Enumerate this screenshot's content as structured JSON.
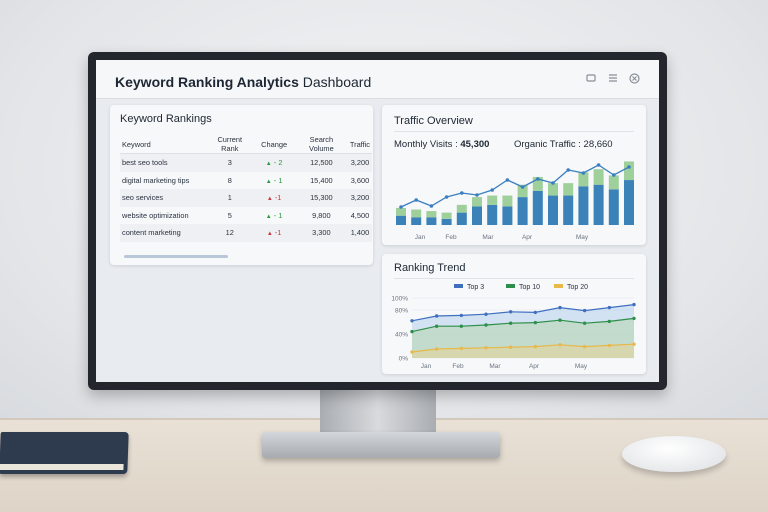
{
  "window": {
    "title_bold": "Keyword Ranking Analytics",
    "title_rest": "Dashboard"
  },
  "icons": {
    "window_controls": [
      "message-icon",
      "list-icon",
      "close-icon"
    ]
  },
  "keyword_rankings": {
    "title": "Keyword Rankings",
    "columns": [
      "Keyword",
      "Current Rank",
      "Change",
      "Search Volume",
      "Traffic"
    ],
    "rows": [
      {
        "keyword": "best seo tools",
        "rank": "3",
        "change": "2",
        "dir": "up",
        "volume": "12,500",
        "traffic": "3,200"
      },
      {
        "keyword": "digital marketing tips",
        "rank": "8",
        "change": "1",
        "dir": "up",
        "volume": "15,400",
        "traffic": "3,600"
      },
      {
        "keyword": "seo services",
        "rank": "1",
        "change": "1",
        "dir": "down",
        "volume": "15,300",
        "traffic": "3,200"
      },
      {
        "keyword": "website optimization",
        "rank": "5",
        "change": "1",
        "dir": "up",
        "volume": "9,800",
        "traffic": "4,500"
      },
      {
        "keyword": "content marketing",
        "rank": "12",
        "change": "1",
        "dir": "down",
        "volume": "3,300",
        "traffic": "1,400"
      }
    ]
  },
  "traffic_overview": {
    "title": "Traffic Overview",
    "monthly_label": "Monthly Visits :",
    "monthly_value": "45,300",
    "organic_label": "Organic Traffic :",
    "organic_value": "28,660"
  },
  "ranking_trend": {
    "title": "Ranking Trend"
  },
  "colors": {
    "blue": "#3b82b8",
    "green": "#9fcf9a",
    "top3": "#3f6fc0",
    "top10": "#2e8f4a",
    "top20": "#e8b84a"
  },
  "chart_data": [
    {
      "type": "bar",
      "title": "Traffic Overview",
      "x_tick_labels": [
        "Jan",
        "Feb",
        "Mar",
        "Apr",
        "May"
      ],
      "series": [
        {
          "values": [
            6,
            5,
            5,
            4,
            8,
            12,
            13,
            12,
            18,
            22,
            19,
            19,
            25,
            26,
            23,
            29
          ]
        },
        {
          "values": [
            5,
            5,
            4,
            4,
            5,
            6,
            6,
            7,
            8,
            9,
            8,
            8,
            9,
            10,
            9,
            12
          ]
        },
        {
          "values": [
            18,
            25,
            19,
            28,
            32,
            30,
            35,
            45,
            38,
            46,
            42,
            55,
            52,
            60,
            50,
            58
          ]
        }
      ]
    },
    {
      "type": "area",
      "title": "Ranking Trend",
      "x_tick_labels": [
        "Jan",
        "Feb",
        "Mar",
        "Apr",
        "May"
      ],
      "y_tick_labels": [
        "0%",
        "40%",
        "80%",
        "100%"
      ],
      "ylim": [
        0,
        100
      ],
      "series": [
        {
          "name": "Top 3",
          "values": [
            62,
            70,
            71,
            73,
            77,
            76,
            84,
            79,
            84,
            89
          ]
        },
        {
          "name": "Top 10",
          "values": [
            44,
            53,
            53,
            55,
            58,
            59,
            63,
            58,
            61,
            66
          ]
        },
        {
          "name": "Top 20",
          "values": [
            10,
            15,
            16,
            17,
            18,
            19,
            22,
            19,
            21,
            23
          ]
        }
      ]
    }
  ]
}
